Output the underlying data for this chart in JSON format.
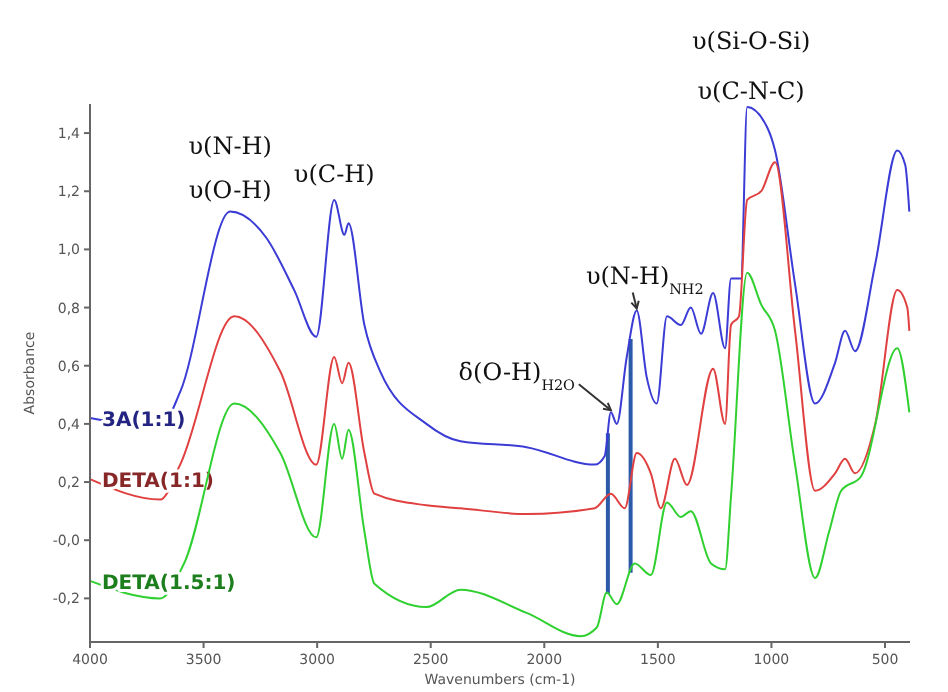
{
  "chart_data": {
    "type": "line",
    "xlabel": "Wavenumbers (cm-1)",
    "ylabel": "Absorbance",
    "xlim": [
      4000,
      390
    ],
    "ylim": [
      -0.35,
      1.5
    ],
    "xticks": [
      4000,
      3500,
      3000,
      2500,
      2000,
      1500,
      1000,
      500
    ],
    "yticks": [
      {
        "value": -0.2,
        "label": "-0,2"
      },
      {
        "value": 0,
        "label": "-0,0"
      },
      {
        "value": 0.2,
        "label": "0,2"
      },
      {
        "value": 0.4,
        "label": "0,4"
      },
      {
        "value": 0.6,
        "label": "0,6"
      },
      {
        "value": 0.8,
        "label": "0,8"
      },
      {
        "value": 1.0,
        "label": "1,0"
      },
      {
        "value": 1.2,
        "label": "1,2"
      },
      {
        "value": 1.4,
        "label": "1,4"
      }
    ],
    "grid": false,
    "marker": "none",
    "line_style": "solid",
    "series": [
      {
        "name": "3A(1:1)",
        "color": "#3b3bd6",
        "x": [
          4000,
          3691,
          3603,
          3383,
          3224,
          3101,
          3004,
          2925,
          2880,
          2862,
          2792,
          2722,
          2519,
          2369,
          2078,
          1778,
          1734,
          1707,
          1681,
          1637,
          1593,
          1549,
          1505,
          1460,
          1399,
          1355,
          1310,
          1257,
          1204,
          1178,
          1134,
          1107,
          1019,
          984,
          896,
          808,
          720,
          676,
          632,
          543,
          446,
          411,
          393
        ],
        "values": [
          0.42,
          0.39,
          0.51,
          1.13,
          1.04,
          0.86,
          0.7,
          1.17,
          1.05,
          1.09,
          0.74,
          0.58,
          0.4,
          0.34,
          0.32,
          0.26,
          0.29,
          0.44,
          0.4,
          0.63,
          0.79,
          0.56,
          0.47,
          0.77,
          0.74,
          0.8,
          0.71,
          0.85,
          0.66,
          0.9,
          0.9,
          1.49,
          1.42,
          1.34,
          0.88,
          0.47,
          0.61,
          0.72,
          0.65,
          0.95,
          1.34,
          1.29,
          1.13
        ]
      },
      {
        "name": "DETA(1:1)",
        "color": "#e04040",
        "x": [
          4000,
          3691,
          3603,
          3365,
          3162,
          3004,
          2925,
          2890,
          2862,
          2792,
          2748,
          2519,
          2369,
          2078,
          1778,
          1707,
          1646,
          1593,
          1531,
          1487,
          1425,
          1372,
          1257,
          1204,
          1178,
          1143,
          1107,
          1045,
          984,
          896,
          808,
          720,
          676,
          632,
          543,
          446,
          402,
          393
        ],
        "values": [
          0.21,
          0.14,
          0.26,
          0.77,
          0.58,
          0.26,
          0.63,
          0.54,
          0.61,
          0.3,
          0.16,
          0.12,
          0.11,
          0.09,
          0.11,
          0.16,
          0.11,
          0.3,
          0.23,
          0.11,
          0.28,
          0.19,
          0.59,
          0.4,
          0.74,
          0.77,
          1.17,
          1.2,
          1.3,
          0.72,
          0.17,
          0.23,
          0.28,
          0.23,
          0.4,
          0.86,
          0.8,
          0.72
        ]
      },
      {
        "name": "DETA(1.5:1)",
        "color": "#30d030",
        "x": [
          4000,
          3691,
          3586,
          3365,
          3162,
          3004,
          2925,
          2890,
          2862,
          2792,
          2748,
          2519,
          2369,
          2078,
          1840,
          1769,
          1725,
          1681,
          1602,
          1531,
          1460,
          1399,
          1355,
          1266,
          1204,
          1178,
          1107,
          1045,
          984,
          896,
          808,
          746,
          693,
          605,
          446,
          393
        ],
        "values": [
          -0.14,
          -0.2,
          -0.08,
          0.47,
          0.3,
          0.01,
          0.4,
          0.28,
          0.38,
          0.03,
          -0.15,
          -0.23,
          -0.17,
          -0.25,
          -0.33,
          -0.3,
          -0.18,
          -0.22,
          -0.08,
          -0.12,
          0.13,
          0.08,
          0.1,
          -0.08,
          -0.1,
          0.15,
          0.92,
          0.81,
          0.72,
          0.26,
          -0.13,
          0.03,
          0.17,
          0.22,
          0.66,
          0.44
        ]
      }
    ],
    "ref_lines": [
      {
        "axis": "x",
        "value": 1720,
        "color": "#2a5aa8"
      },
      {
        "axis": "x",
        "value": 1620,
        "color": "#2a5aa8"
      }
    ],
    "annotations": [
      {
        "text": "υ(O-H)",
        "x": 3383,
        "y": 1.13
      },
      {
        "text": "υ(N-H)",
        "x": 3383,
        "y": 1.13
      },
      {
        "text": "υ(C-H)",
        "x": 2925,
        "y": 1.17
      },
      {
        "text": "δ(O-H)$_{H2O}$",
        "x": 1707,
        "y": 0.44
      },
      {
        "text": "υ(N-H)$_{NH2}$",
        "x": 1593,
        "y": 0.79
      },
      {
        "text": "υ(C-N-C)",
        "x": 1107,
        "y": 1.49
      },
      {
        "text": "υ(Si-O-Si)",
        "x": 1107,
        "y": 1.49
      }
    ]
  }
}
